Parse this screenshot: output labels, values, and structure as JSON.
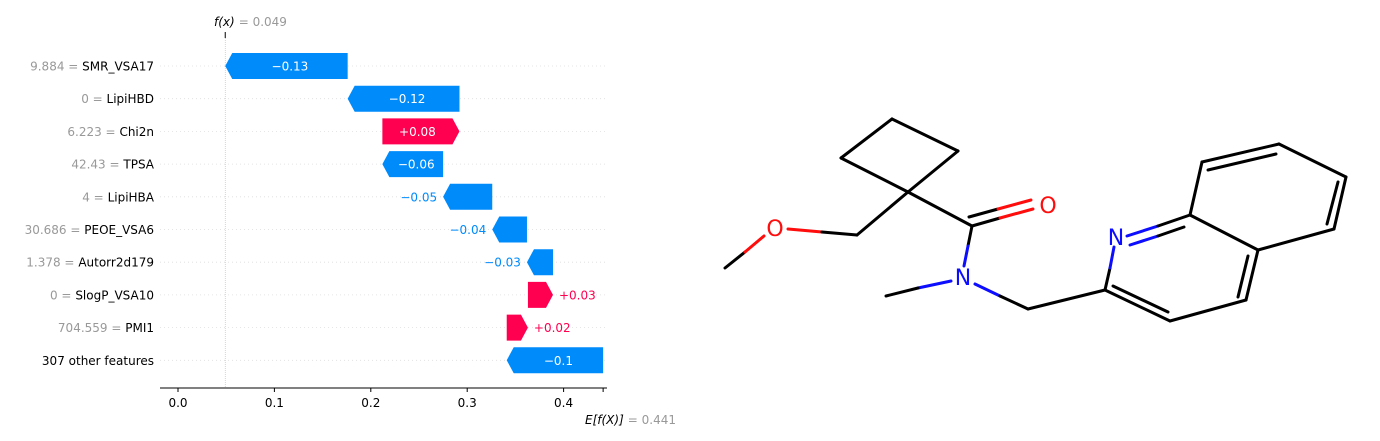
{
  "chart_data": {
    "type": "waterfall",
    "fx_label": "f(x)",
    "fx_value_text": "= 0.049",
    "efx_label": "E[f(X)]",
    "efx_value_text": "= 0.441",
    "fx": 0.049,
    "base_value": 0.441,
    "xlim": [
      -0.017,
      0.445
    ],
    "xticks": [
      "0.0",
      "0.1",
      "0.2",
      "0.3",
      "0.4"
    ],
    "xtick_values": [
      0.0,
      0.1,
      0.2,
      0.3,
      0.4
    ],
    "colors": {
      "positive": "#ff0051",
      "negative": "#008bfb"
    },
    "rows": [
      {
        "value_text": "9.884",
        "feature": "SMR_VSA17",
        "shap": -0.13,
        "label": "−0.13",
        "start": 0.049,
        "end": 0.176
      },
      {
        "value_text": "0",
        "feature": "LipiHBD",
        "shap": -0.12,
        "label": "−0.12",
        "start": 0.176,
        "end": 0.292
      },
      {
        "value_text": "6.223",
        "feature": "Chi2n",
        "shap": 0.08,
        "label": "+0.08",
        "start": 0.292,
        "end": 0.212
      },
      {
        "value_text": "42.43",
        "feature": "TPSA",
        "shap": -0.06,
        "label": "−0.06",
        "start": 0.212,
        "end": 0.275
      },
      {
        "value_text": "4",
        "feature": "LipiHBA",
        "shap": -0.05,
        "label": "−0.05",
        "start": 0.275,
        "end": 0.326
      },
      {
        "value_text": "30.686",
        "feature": "PEOE_VSA6",
        "shap": -0.04,
        "label": "−0.04",
        "start": 0.326,
        "end": 0.362
      },
      {
        "value_text": "1.378",
        "feature": "Autorr2d179",
        "shap": -0.03,
        "label": "−0.03",
        "start": 0.362,
        "end": 0.389
      },
      {
        "value_text": "0",
        "feature": "SlogP_VSA10",
        "shap": 0.03,
        "label": "+0.03",
        "start": 0.389,
        "end": 0.363
      },
      {
        "value_text": "704.559",
        "feature": "PMI1",
        "shap": 0.02,
        "label": "+0.02",
        "start": 0.363,
        "end": 0.341
      },
      {
        "value_text": "",
        "feature": "307 other features",
        "shap": -0.1,
        "label": "−0.1",
        "start": 0.341,
        "end": 0.441
      }
    ]
  },
  "molecule": {
    "atom_labels": {
      "oxygen_ether": "O",
      "oxygen_carbonyl": "O",
      "nitrogen_amide": "N",
      "nitrogen_ring": "N"
    },
    "colors": {
      "oxygen": "#ff0d0d",
      "nitrogen": "#0d0dff",
      "carbon": "#000000"
    }
  }
}
